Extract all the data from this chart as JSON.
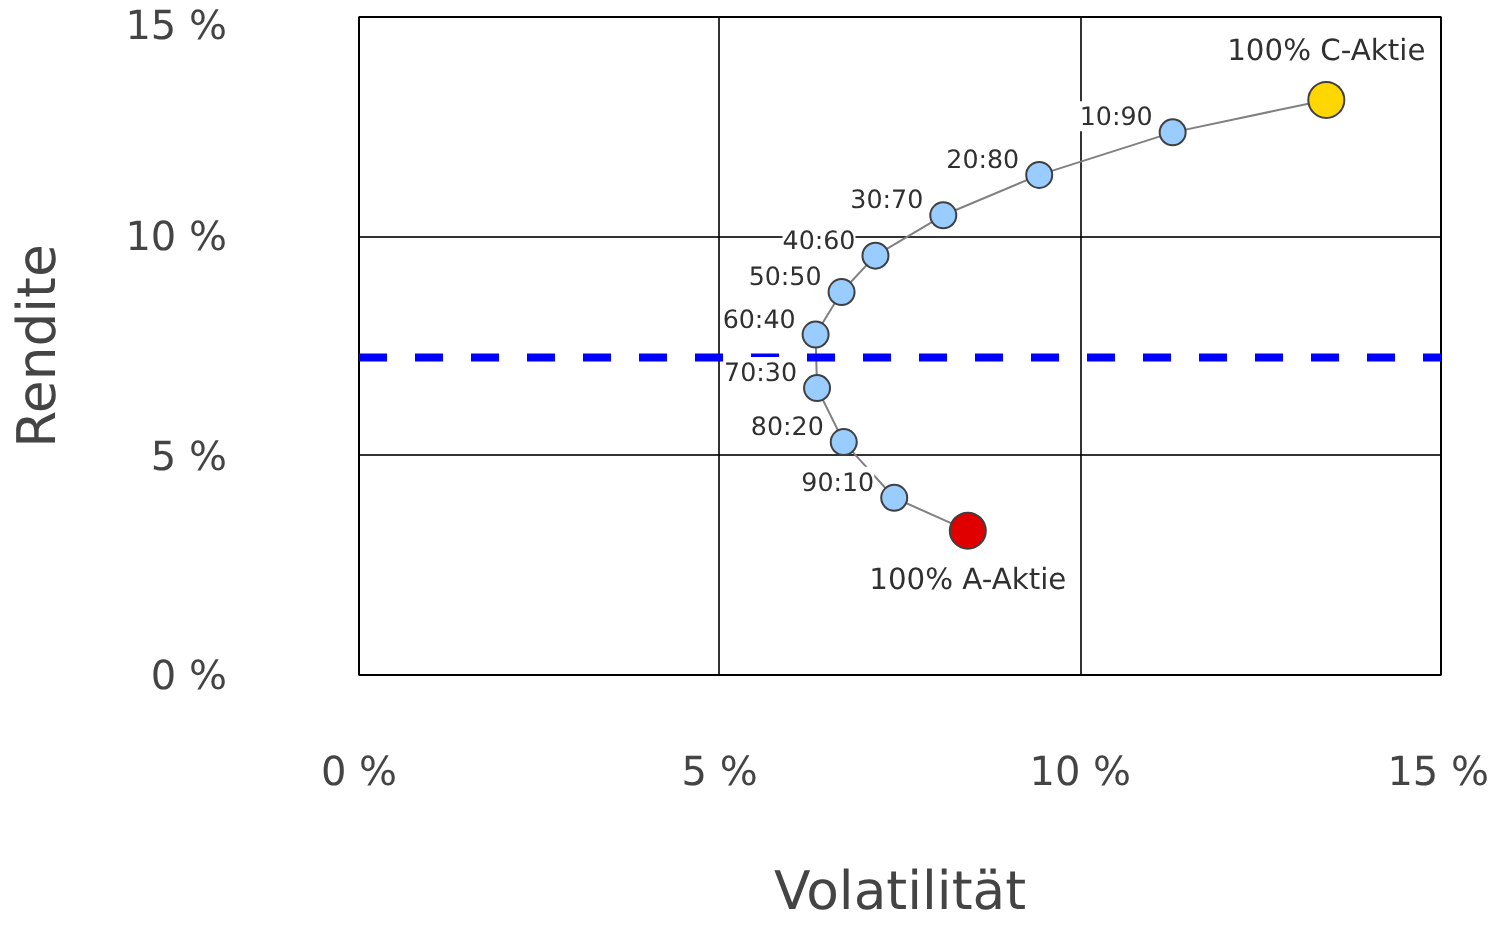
{
  "chart_data": {
    "type": "line",
    "xlabel": "Volatilität",
    "ylabel": "Rendite",
    "x": [
      8.44,
      7.42,
      6.72,
      6.35,
      6.33,
      6.69,
      7.16,
      8.1,
      9.43,
      11.28,
      13.41
    ],
    "series": [
      {
        "color": "#808080",
        "values": [
          3.29,
          4.04,
          5.31,
          6.54,
          7.76,
          8.73,
          9.56,
          10.48,
          11.4,
          12.37,
          13.11
        ],
        "colors": [
          "#e00000",
          "#99ccff",
          "#99ccff",
          "#99ccff",
          "#99ccff",
          "#99ccff",
          "#99ccff",
          "#99ccff",
          "#99ccff",
          "#99ccff",
          "#ffd700"
        ]
      }
    ],
    "marker": "circle",
    "xlim": [
      0,
      15
    ],
    "ylim": [
      0,
      15
    ],
    "xticks": [
      {
        "value": 0,
        "label": "0 %"
      },
      {
        "value": 5,
        "label": "5 %"
      },
      {
        "value": 10,
        "label": "10 %"
      },
      {
        "value": 15,
        "label": "15 %"
      }
    ],
    "yticks": [
      {
        "value": 0,
        "label": "0 %"
      },
      {
        "value": 5,
        "label": "5 %"
      },
      {
        "value": 10,
        "label": "10 %"
      },
      {
        "value": 15,
        "label": "15 %"
      }
    ],
    "grid": true,
    "ref_lines": [
      {
        "axis": "y",
        "value": 7.24,
        "color": "#0000ff",
        "line_style": "dashed"
      }
    ],
    "annotations": [
      {
        "text": "100% A-Aktie",
        "x": 8.44,
        "y": 3.29
      },
      {
        "text": "90:10",
        "x": 7.42,
        "y": 4.04
      },
      {
        "text": "80:20",
        "x": 6.72,
        "y": 5.31
      },
      {
        "text": "70:30",
        "x": 6.35,
        "y": 6.54
      },
      {
        "text": "60:40",
        "x": 6.33,
        "y": 7.76
      },
      {
        "text": "50:50",
        "x": 6.69,
        "y": 8.73
      },
      {
        "text": "40:60",
        "x": 7.16,
        "y": 9.56
      },
      {
        "text": "30:70",
        "x": 8.1,
        "y": 10.48
      },
      {
        "text": "20:80",
        "x": 9.43,
        "y": 11.4
      },
      {
        "text": "10:90",
        "x": 11.28,
        "y": 12.37
      },
      {
        "text": "100% C-Aktie",
        "x": 13.41,
        "y": 13.11
      }
    ]
  }
}
